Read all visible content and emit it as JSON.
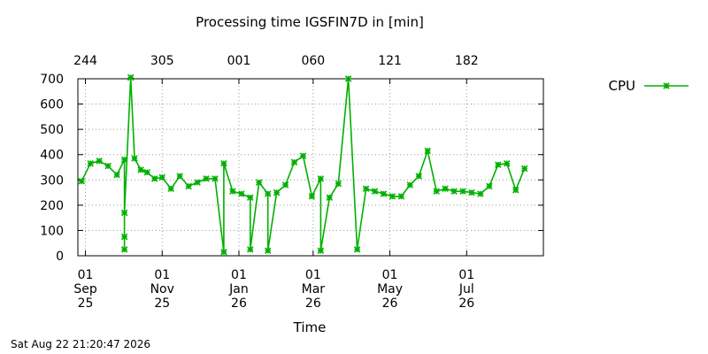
{
  "chart_data": {
    "type": "line",
    "title": "Processing time IGSFIN7D in [min]",
    "xlabel": "Time",
    "ylabel": "",
    "ylim": [
      0,
      700
    ],
    "yticks": [
      0,
      100,
      200,
      300,
      400,
      500,
      600,
      700
    ],
    "xlim": [
      "2025-08-26",
      "2026-08-31"
    ],
    "x_ticks_bottom": [
      {
        "date": "2025-09-01",
        "lines": [
          "01",
          "Sep",
          "25"
        ]
      },
      {
        "date": "2025-11-01",
        "lines": [
          "01",
          "Nov",
          "25"
        ]
      },
      {
        "date": "2026-01-01",
        "lines": [
          "01",
          "Jan",
          "26"
        ]
      },
      {
        "date": "2026-03-01",
        "lines": [
          "01",
          "Mar",
          "26"
        ]
      },
      {
        "date": "2026-05-01",
        "lines": [
          "01",
          "May",
          "26"
        ]
      },
      {
        "date": "2026-07-01",
        "lines": [
          "01",
          "Jul",
          "26"
        ]
      }
    ],
    "x_ticks_top": [
      {
        "date": "2025-09-01",
        "label": "244"
      },
      {
        "date": "2025-11-01",
        "label": "305"
      },
      {
        "date": "2026-01-01",
        "label": "001"
      },
      {
        "date": "2026-03-01",
        "label": "060"
      },
      {
        "date": "2026-05-01",
        "label": "121"
      },
      {
        "date": "2026-07-01",
        "label": "182"
      }
    ],
    "grid": true,
    "legend_position": "top-right",
    "series": [
      {
        "name": "CPU",
        "color": "#00b000",
        "marker": "asterisk",
        "points": [
          [
            "2025-08-29",
            295
          ],
          [
            "2025-09-05",
            365
          ],
          [
            "2025-09-12",
            375
          ],
          [
            "2025-09-19",
            355
          ],
          [
            "2025-09-26",
            320
          ],
          [
            "2025-10-02",
            380
          ],
          [
            "2025-10-02",
            25
          ],
          [
            "2025-10-02",
            75
          ],
          [
            "2025-10-02",
            170
          ],
          [
            "2025-10-07",
            705
          ],
          [
            "2025-10-10",
            385
          ],
          [
            "2025-10-15",
            340
          ],
          [
            "2025-10-20",
            330
          ],
          [
            "2025-10-26",
            305
          ],
          [
            "2025-11-01",
            310
          ],
          [
            "2025-11-08",
            265
          ],
          [
            "2025-11-15",
            315
          ],
          [
            "2025-11-22",
            275
          ],
          [
            "2025-11-29",
            290
          ],
          [
            "2025-12-06",
            305
          ],
          [
            "2025-12-13",
            305
          ],
          [
            "2025-12-20",
            15
          ],
          [
            "2025-12-20",
            365
          ],
          [
            "2025-12-27",
            255
          ],
          [
            "2026-01-03",
            245
          ],
          [
            "2026-01-10",
            230
          ],
          [
            "2026-01-10",
            25
          ],
          [
            "2026-01-17",
            290
          ],
          [
            "2026-01-24",
            245
          ],
          [
            "2026-01-24",
            20
          ],
          [
            "2026-01-31",
            250
          ],
          [
            "2026-02-07",
            280
          ],
          [
            "2026-02-14",
            370
          ],
          [
            "2026-02-21",
            395
          ],
          [
            "2026-02-28",
            235
          ],
          [
            "2026-03-07",
            305
          ],
          [
            "2026-03-07",
            20
          ],
          [
            "2026-03-14",
            230
          ],
          [
            "2026-03-21",
            285
          ],
          [
            "2026-03-29",
            700
          ],
          [
            "2026-04-05",
            25
          ],
          [
            "2026-04-12",
            265
          ],
          [
            "2026-04-19",
            255
          ],
          [
            "2026-04-26",
            245
          ],
          [
            "2026-05-03",
            235
          ],
          [
            "2026-05-10",
            235
          ],
          [
            "2026-05-17",
            280
          ],
          [
            "2026-05-24",
            315
          ],
          [
            "2026-05-31",
            415
          ],
          [
            "2026-06-07",
            255
          ],
          [
            "2026-06-14",
            265
          ],
          [
            "2026-06-21",
            255
          ],
          [
            "2026-06-28",
            255
          ],
          [
            "2026-07-05",
            250
          ],
          [
            "2026-07-12",
            245
          ],
          [
            "2026-07-19",
            275
          ],
          [
            "2026-07-26",
            360
          ],
          [
            "2026-08-02",
            365
          ],
          [
            "2026-08-09",
            260
          ],
          [
            "2026-08-16",
            345
          ]
        ]
      }
    ]
  },
  "footer_timestamp": "Sat Aug 22 21:20:47 2026"
}
